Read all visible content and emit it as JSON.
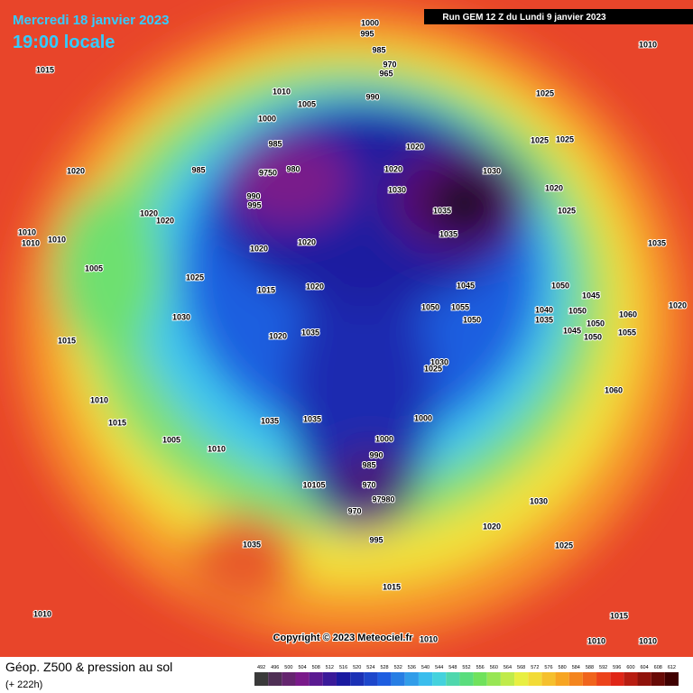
{
  "header": {
    "date": "Mercredi 18 janvier 2023",
    "time": "19:00 locale",
    "run": "Run GEM 12 Z du Lundi 9 janvier 2023"
  },
  "copyright": "Copyright © 2023 Meteociel.fr",
  "legend": {
    "title": "Géop. Z500 & pression au sol",
    "subtitle": "(+ 222h)",
    "scale": [
      492,
      496,
      500,
      504,
      508,
      512,
      516,
      520,
      524,
      528,
      532,
      536,
      540,
      544,
      548,
      552,
      556,
      560,
      564,
      568,
      572,
      576,
      580,
      584,
      588,
      592,
      596,
      600,
      604,
      608,
      612
    ]
  },
  "isobar_labels": [
    1000,
    995,
    1015,
    985,
    970,
    965,
    1010,
    1005,
    990,
    1025,
    1010,
    1000,
    985,
    9750,
    980,
    985,
    1020,
    1030,
    1020,
    1030,
    1025,
    1025,
    1020,
    1020,
    990,
    995,
    1020,
    1020,
    1035,
    1035,
    1025,
    1010,
    1010,
    1010,
    1020,
    1020,
    1035,
    1005,
    1025,
    1045,
    1050,
    1015,
    1020,
    1045,
    1050,
    1055,
    1040,
    1035,
    1050,
    1060,
    1020,
    1050,
    1030,
    1050,
    1055,
    1045,
    1050,
    1020,
    1035,
    1015,
    1030,
    1025,
    1010,
    1060,
    1035,
    1035,
    1000,
    1015,
    1005,
    1010,
    1000,
    990,
    985,
    10105,
    970,
    97980,
    970,
    1030,
    1020,
    995,
    1025,
    1035,
    1015,
    1010,
    1015,
    1010,
    1010,
    1010
  ]
}
